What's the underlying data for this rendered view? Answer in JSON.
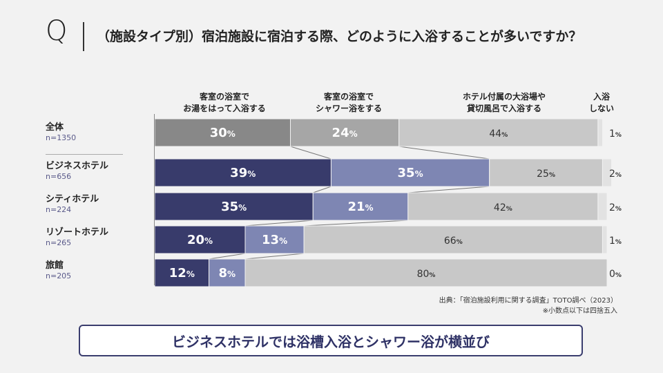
{
  "header": {
    "q_mark": "Q",
    "question": "（施設タイプ別）宿泊施設に宿泊する際、どのように入浴することが多いですか？"
  },
  "chart_data": {
    "type": "bar",
    "orientation": "horizontal-stacked-100",
    "categories": [
      "全体",
      "ビジネスホテル",
      "シティホテル",
      "リゾートホテル",
      "旅館"
    ],
    "sample_sizes": [
      "n=1350",
      "n=656",
      "n=224",
      "n=265",
      "n=205"
    ],
    "series": [
      {
        "name": "客室の浴室でお湯をはって入浴する",
        "label_lines": [
          "客室の浴室で",
          "お湯をはって入浴する"
        ],
        "values": [
          30,
          39,
          35,
          20,
          12
        ]
      },
      {
        "name": "客室の浴室でシャワー浴をする",
        "label_lines": [
          "客室の浴室で",
          "シャワー浴をする"
        ],
        "values": [
          24,
          35,
          21,
          13,
          8
        ]
      },
      {
        "name": "ホテル付属の大浴場や貸切風呂で入浴する",
        "label_lines": [
          "ホテル付属の大浴場や",
          "貸切風呂で入浴する"
        ],
        "values": [
          44,
          25,
          42,
          66,
          80
        ]
      },
      {
        "name": "入浴しない",
        "label_lines": [
          "入浴",
          "しない"
        ],
        "values": [
          1,
          2,
          2,
          1,
          0
        ]
      }
    ],
    "unit": "%",
    "colors": {
      "total_s1": "#888888",
      "total_s2": "#a6a6a6",
      "s1": "#383b6b",
      "s2": "#7e86b3",
      "s3": "#c8c8c8",
      "s4": "#e2e2e2"
    },
    "xlim": [
      0,
      100
    ]
  },
  "source": {
    "line1": "出典：「宿泊施設利用に関する調査」TOTO調べ（2023）",
    "line2": "※小数点以下は四捨五入"
  },
  "conclusion": "ビジネスホテルでは浴槽入浴とシャワー浴が横並び"
}
